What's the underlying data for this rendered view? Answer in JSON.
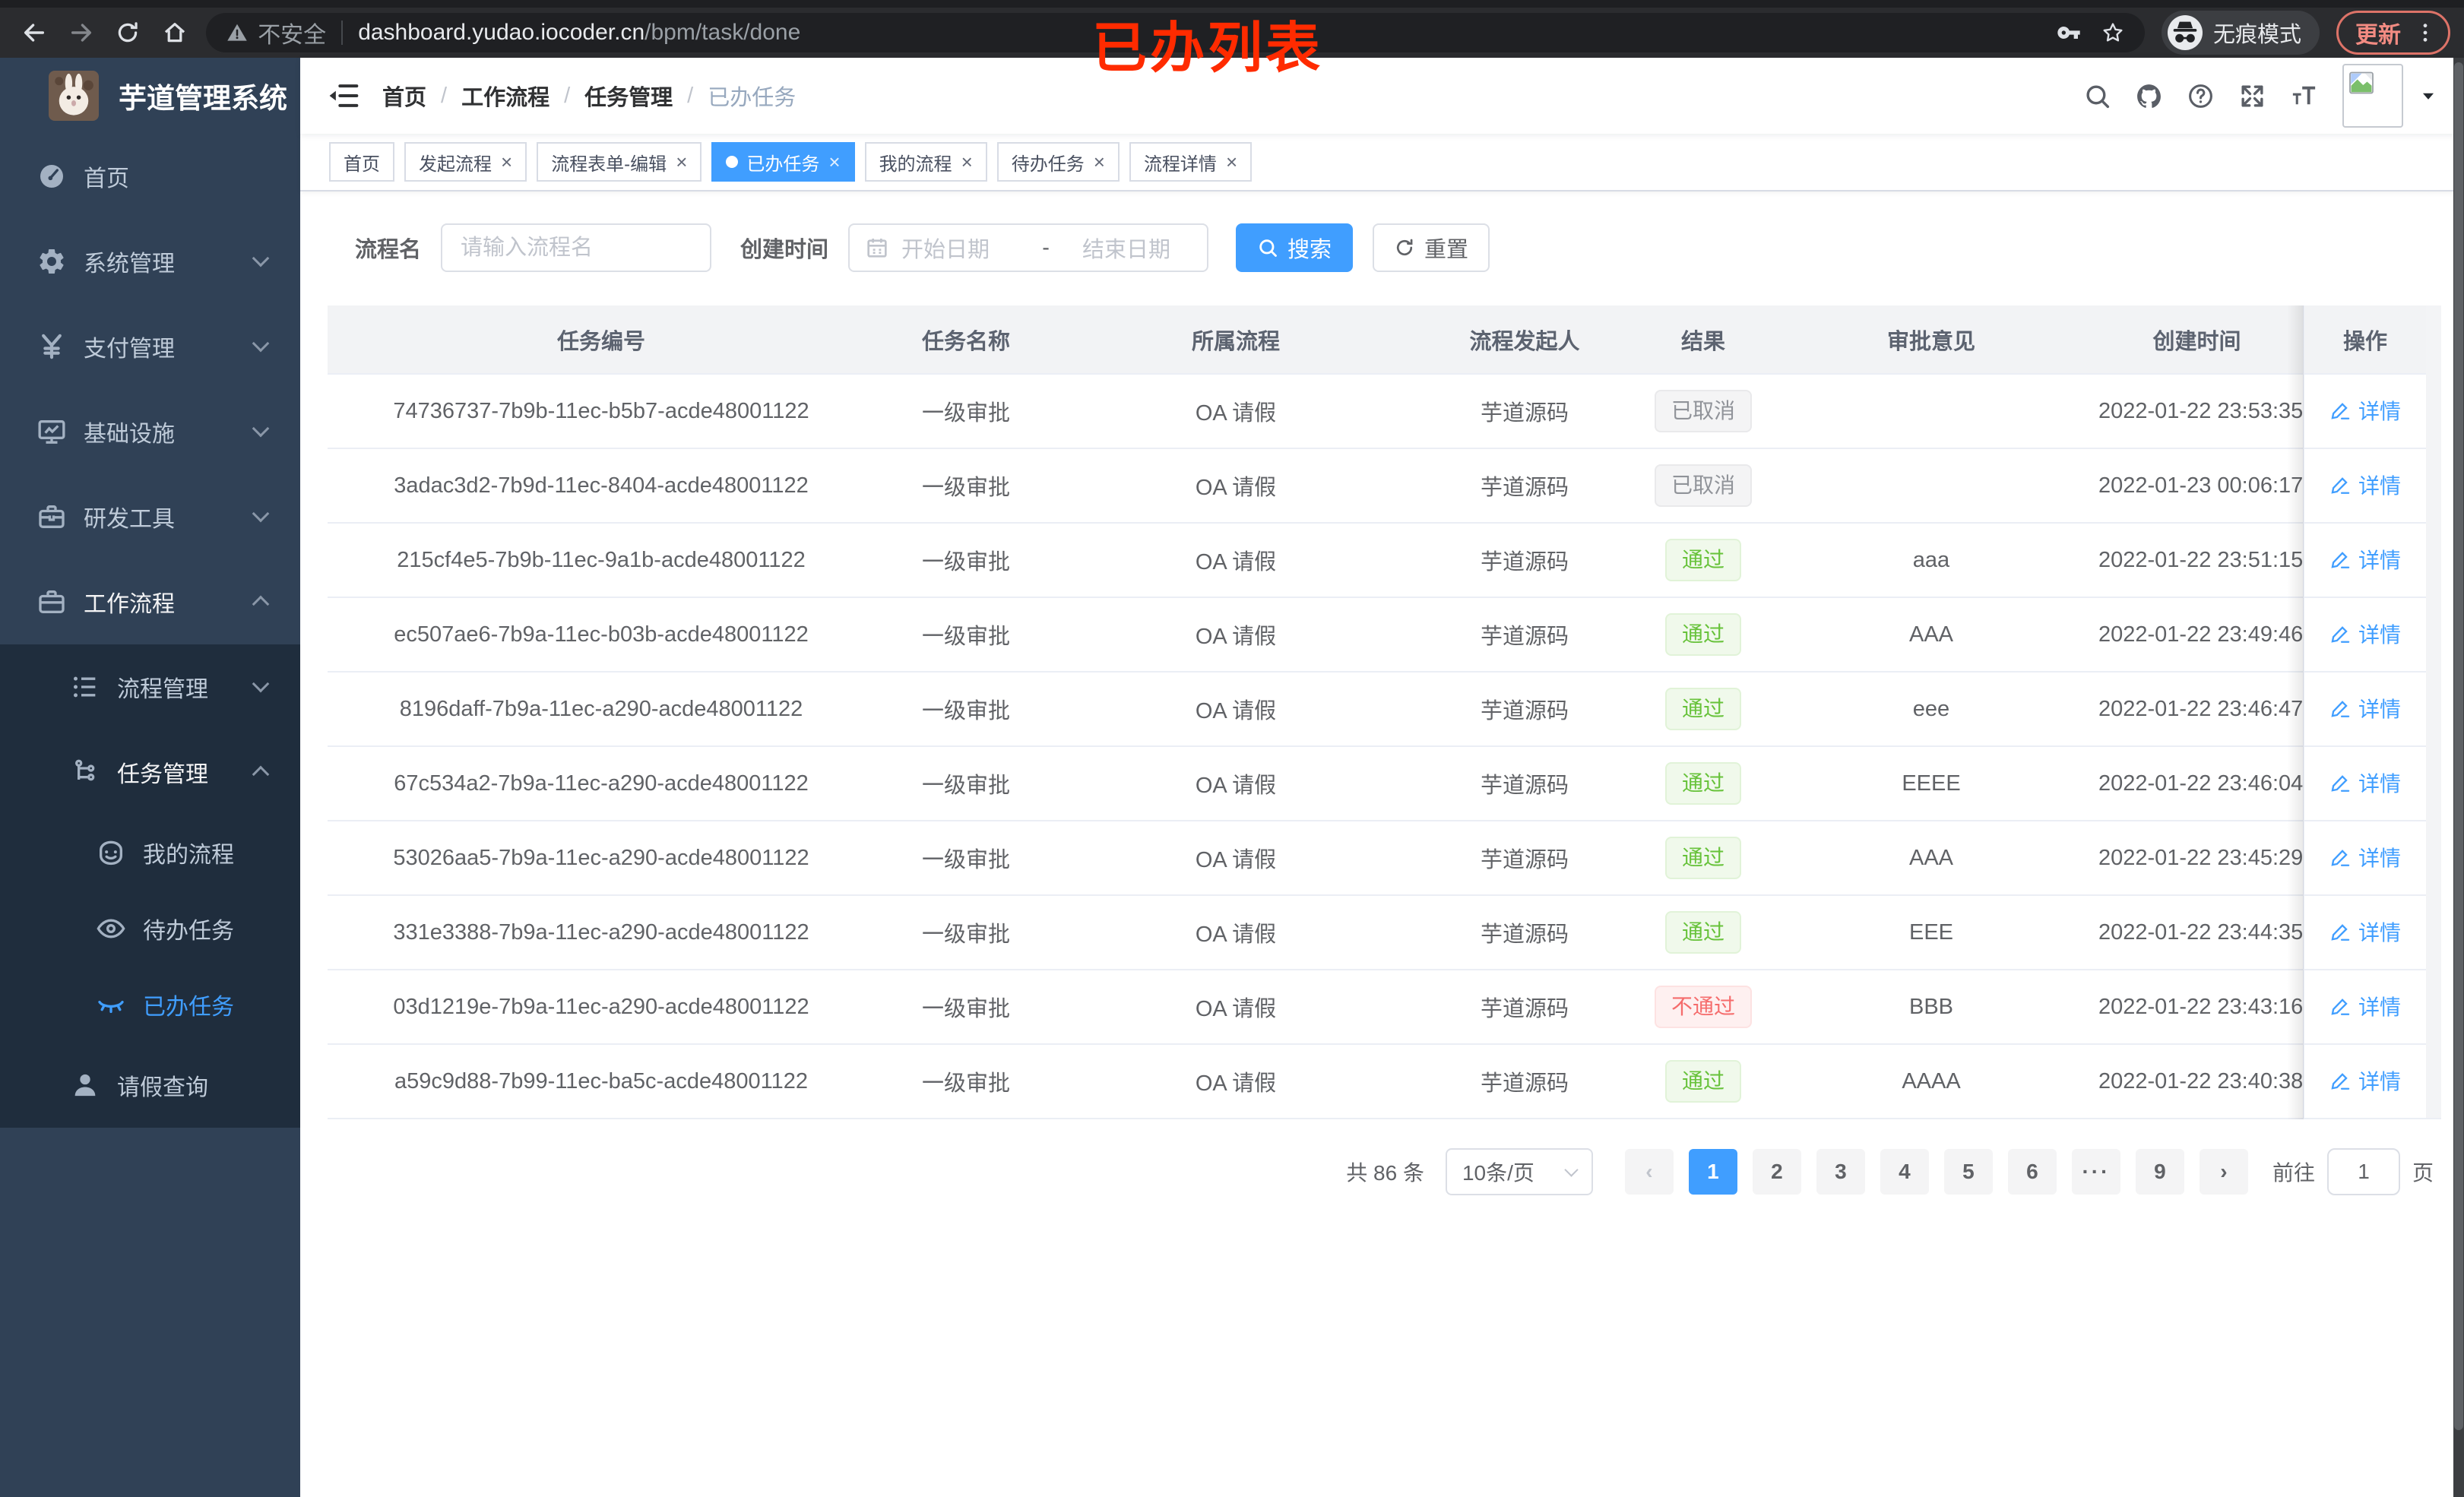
{
  "annotation": {
    "text": "已办列表",
    "color": "#ff2b00"
  },
  "browser": {
    "security_label": "不安全",
    "url_host": "dashboard.yudao.iocoder.cn",
    "url_path": "/bpm/task/done",
    "incognito_label": "无痕模式",
    "update_label": "更新"
  },
  "sidebar": {
    "title": "芋道管理系统",
    "menu": [
      {
        "label": "首页",
        "icon": "dashboard",
        "level": 1
      },
      {
        "label": "系统管理",
        "icon": "gear",
        "level": 1,
        "chevron": "down"
      },
      {
        "label": "支付管理",
        "icon": "yen",
        "level": 1,
        "chevron": "down"
      },
      {
        "label": "基础设施",
        "icon": "monitor",
        "level": 1,
        "chevron": "down"
      },
      {
        "label": "研发工具",
        "icon": "toolbox",
        "level": 1,
        "chevron": "down"
      },
      {
        "label": "工作流程",
        "icon": "briefcase",
        "level": 1,
        "chevron": "up",
        "bright": true
      },
      {
        "label": "流程管理",
        "icon": "tree-list",
        "level": 2,
        "chevron": "down",
        "dark": true
      },
      {
        "label": "任务管理",
        "icon": "org-tree",
        "level": 2,
        "chevron": "up",
        "dark": true,
        "bright": true
      },
      {
        "label": "我的流程",
        "icon": "robot-face",
        "level": 3,
        "dark": true
      },
      {
        "label": "待办任务",
        "icon": "eye-open",
        "level": 3,
        "dark": true
      },
      {
        "label": "已办任务",
        "icon": "eye-closed",
        "level": 3,
        "dark": true,
        "active": true
      },
      {
        "label": "请假查询",
        "icon": "user",
        "level": 2,
        "dark": true
      }
    ]
  },
  "header": {
    "breadcrumb": [
      "首页",
      "工作流程",
      "任务管理",
      "已办任务"
    ],
    "breadcrumb_separator": "/",
    "right_icons": [
      "search",
      "github",
      "help",
      "fullscreen",
      "text-size"
    ]
  },
  "tabs": [
    {
      "label": "首页",
      "closable": false,
      "active": false
    },
    {
      "label": "发起流程",
      "closable": true,
      "active": false
    },
    {
      "label": "流程表单-编辑",
      "closable": true,
      "active": false
    },
    {
      "label": "已办任务",
      "closable": true,
      "active": true
    },
    {
      "label": "我的流程",
      "closable": true,
      "active": false
    },
    {
      "label": "待办任务",
      "closable": true,
      "active": false
    },
    {
      "label": "流程详情",
      "closable": true,
      "active": false
    }
  ],
  "filters": {
    "process_name_label": "流程名",
    "process_name_placeholder": "请输入流程名",
    "create_time_label": "创建时间",
    "start_placeholder": "开始日期",
    "range_separator": "-",
    "end_placeholder": "结束日期",
    "search_label": "搜索",
    "reset_label": "重置"
  },
  "table": {
    "columns": [
      "任务编号",
      "任务名称",
      "所属流程",
      "流程发起人",
      "结果",
      "审批意见",
      "创建时间",
      "操作"
    ],
    "action_label": "详情",
    "rows": [
      {
        "id": "74736737-7b9b-11ec-b5b7-acde48001122",
        "name": "一级审批",
        "process": "OA 请假",
        "starter": "芋道源码",
        "result": "已取消",
        "result_type": "info",
        "opinion": "",
        "created": "2022-01-22 23:53:35"
      },
      {
        "id": "3adac3d2-7b9d-11ec-8404-acde48001122",
        "name": "一级审批",
        "process": "OA 请假",
        "starter": "芋道源码",
        "result": "已取消",
        "result_type": "info",
        "opinion": "",
        "created": "2022-01-23 00:06:17"
      },
      {
        "id": "215cf4e5-7b9b-11ec-9a1b-acde48001122",
        "name": "一级审批",
        "process": "OA 请假",
        "starter": "芋道源码",
        "result": "通过",
        "result_type": "success",
        "opinion": "aaa",
        "created": "2022-01-22 23:51:15"
      },
      {
        "id": "ec507ae6-7b9a-11ec-b03b-acde48001122",
        "name": "一级审批",
        "process": "OA 请假",
        "starter": "芋道源码",
        "result": "通过",
        "result_type": "success",
        "opinion": "AAA",
        "created": "2022-01-22 23:49:46"
      },
      {
        "id": "8196daff-7b9a-11ec-a290-acde48001122",
        "name": "一级审批",
        "process": "OA 请假",
        "starter": "芋道源码",
        "result": "通过",
        "result_type": "success",
        "opinion": "eee",
        "created": "2022-01-22 23:46:47"
      },
      {
        "id": "67c534a2-7b9a-11ec-a290-acde48001122",
        "name": "一级审批",
        "process": "OA 请假",
        "starter": "芋道源码",
        "result": "通过",
        "result_type": "success",
        "opinion": "EEEE",
        "created": "2022-01-22 23:46:04"
      },
      {
        "id": "53026aa5-7b9a-11ec-a290-acde48001122",
        "name": "一级审批",
        "process": "OA 请假",
        "starter": "芋道源码",
        "result": "通过",
        "result_type": "success",
        "opinion": "AAA",
        "created": "2022-01-22 23:45:29"
      },
      {
        "id": "331e3388-7b9a-11ec-a290-acde48001122",
        "name": "一级审批",
        "process": "OA 请假",
        "starter": "芋道源码",
        "result": "通过",
        "result_type": "success",
        "opinion": "EEE",
        "created": "2022-01-22 23:44:35"
      },
      {
        "id": "03d1219e-7b9a-11ec-a290-acde48001122",
        "name": "一级审批",
        "process": "OA 请假",
        "starter": "芋道源码",
        "result": "不通过",
        "result_type": "danger",
        "opinion": "BBB",
        "created": "2022-01-22 23:43:16"
      },
      {
        "id": "a59c9d88-7b99-11ec-ba5c-acde48001122",
        "name": "一级审批",
        "process": "OA 请假",
        "starter": "芋道源码",
        "result": "通过",
        "result_type": "success",
        "opinion": "AAAA",
        "created": "2022-01-22 23:40:38"
      }
    ]
  },
  "pagination": {
    "total_label": "共 86 条",
    "page_size": "10条/页",
    "pages": [
      "1",
      "2",
      "3",
      "4",
      "5",
      "6",
      "···",
      "9"
    ],
    "active_page": "1",
    "goto_label": "前往",
    "goto_value": "1",
    "goto_suffix": "页",
    "accent_color": "#409eff"
  }
}
